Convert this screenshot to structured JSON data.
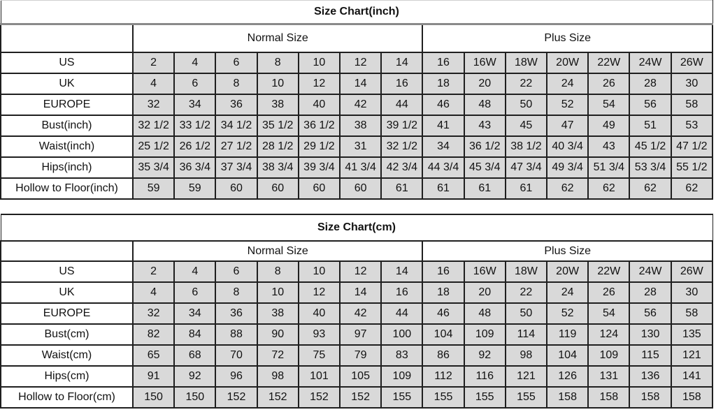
{
  "colors": {
    "cell_bg": "#d9d9d9",
    "grid_line": "#1f1f1f",
    "inch_title_rule": "#8a8a8a",
    "label_bg": "#ffffff"
  },
  "tables": [
    {
      "title": "Size Chart(inch)",
      "group_headers": [
        "Normal Size",
        "Plus Size"
      ],
      "rows": [
        {
          "label": "US",
          "values": [
            "2",
            "4",
            "6",
            "8",
            "10",
            "12",
            "14",
            "16",
            "16W",
            "18W",
            "20W",
            "22W",
            "24W",
            "26W"
          ]
        },
        {
          "label": "UK",
          "values": [
            "4",
            "6",
            "8",
            "10",
            "12",
            "14",
            "16",
            "18",
            "20",
            "22",
            "24",
            "26",
            "28",
            "30"
          ]
        },
        {
          "label": "EUROPE",
          "values": [
            "32",
            "34",
            "36",
            "38",
            "40",
            "42",
            "44",
            "46",
            "48",
            "50",
            "52",
            "54",
            "56",
            "58"
          ]
        },
        {
          "label": "Bust(inch)",
          "values": [
            "32 1/2",
            "33 1/2",
            "34 1/2",
            "35 1/2",
            "36 1/2",
            "38",
            "39 1/2",
            "41",
            "43",
            "45",
            "47",
            "49",
            "51",
            "53"
          ]
        },
        {
          "label": "Waist(inch)",
          "values": [
            "25 1/2",
            "26 1/2",
            "27 1/2",
            "28 1/2",
            "29 1/2",
            "31",
            "32 1/2",
            "34",
            "36 1/2",
            "38 1/2",
            "40 3/4",
            "43",
            "45 1/2",
            "47 1/2"
          ]
        },
        {
          "label": "Hips(inch)",
          "values": [
            "35 3/4",
            "36 3/4",
            "37 3/4",
            "38 3/4",
            "39 3/4",
            "41 3/4",
            "42 3/4",
            "44 3/4",
            "45 3/4",
            "47 3/4",
            "49 3/4",
            "51 3/4",
            "53 3/4",
            "55 1/2"
          ]
        },
        {
          "label": "Hollow to Floor(inch)",
          "values": [
            "59",
            "59",
            "60",
            "60",
            "60",
            "60",
            "61",
            "61",
            "61",
            "61",
            "62",
            "62",
            "62",
            "62"
          ]
        }
      ]
    },
    {
      "title": "Size Chart(cm)",
      "group_headers": [
        "Normal Size",
        "Plus Size"
      ],
      "rows": [
        {
          "label": "US",
          "values": [
            "2",
            "4",
            "6",
            "8",
            "10",
            "12",
            "14",
            "16",
            "16W",
            "18W",
            "20W",
            "22W",
            "24W",
            "26W"
          ]
        },
        {
          "label": "UK",
          "values": [
            "4",
            "6",
            "8",
            "10",
            "12",
            "14",
            "16",
            "18",
            "20",
            "22",
            "24",
            "26",
            "28",
            "30"
          ]
        },
        {
          "label": "EUROPE",
          "values": [
            "32",
            "34",
            "36",
            "38",
            "40",
            "42",
            "44",
            "46",
            "48",
            "50",
            "52",
            "54",
            "56",
            "58"
          ]
        },
        {
          "label": "Bust(cm)",
          "values": [
            "82",
            "84",
            "88",
            "90",
            "93",
            "97",
            "100",
            "104",
            "109",
            "114",
            "119",
            "124",
            "130",
            "135"
          ]
        },
        {
          "label": "Waist(cm)",
          "values": [
            "65",
            "68",
            "70",
            "72",
            "75",
            "79",
            "83",
            "86",
            "92",
            "98",
            "104",
            "109",
            "115",
            "121"
          ]
        },
        {
          "label": "Hips(cm)",
          "values": [
            "91",
            "92",
            "96",
            "98",
            "101",
            "105",
            "109",
            "112",
            "116",
            "121",
            "126",
            "131",
            "136",
            "141"
          ]
        },
        {
          "label": "Hollow to Floor(cm)",
          "values": [
            "150",
            "150",
            "152",
            "152",
            "152",
            "152",
            "155",
            "155",
            "155",
            "155",
            "158",
            "158",
            "158",
            "158"
          ]
        }
      ]
    }
  ]
}
